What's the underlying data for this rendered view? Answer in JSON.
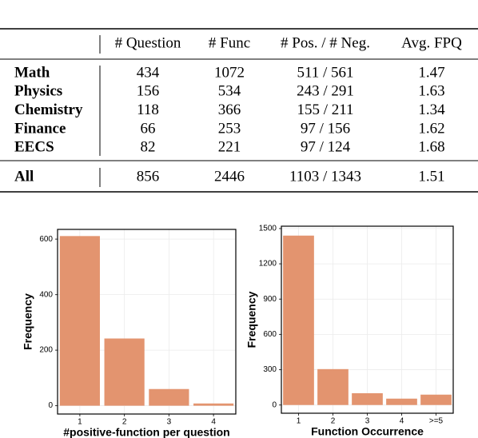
{
  "table": {
    "header": [
      "# Question",
      "# Func",
      "# Pos. / # Neg.",
      "Avg. FPQ"
    ],
    "rows": [
      [
        "Math",
        "434",
        "1072",
        "511 / 561",
        "1.47"
      ],
      [
        "Physics",
        "156",
        "534",
        "243 / 291",
        "1.63"
      ],
      [
        "Chemistry",
        "118",
        "366",
        "155 / 211",
        "1.34"
      ],
      [
        "Finance",
        "66",
        "253",
        "97 / 156",
        "1.62"
      ],
      [
        "EECS",
        "82",
        "221",
        "97 / 124",
        "1.68"
      ]
    ],
    "total": [
      "All",
      "856",
      "2446",
      "1103 / 1343",
      "1.51"
    ]
  },
  "chart_data": [
    {
      "type": "bar",
      "x_label": "#positive-function per question",
      "y_label": "Frequency",
      "categories": [
        "1",
        "2",
        "3",
        "4"
      ],
      "values": [
        611,
        242,
        60,
        8
      ],
      "color": "#e3946f",
      "ylim": [
        -30,
        635
      ],
      "yticks": [
        0,
        200,
        400,
        600
      ],
      "grid": true
    },
    {
      "type": "bar",
      "x_label": "Function Occurrence",
      "y_label": "Frequency",
      "categories": [
        "1",
        "2",
        "3",
        "4",
        ">=5"
      ],
      "values": [
        1440,
        305,
        100,
        54,
        88
      ],
      "color": "#e3946f",
      "ylim": [
        -70,
        1520
      ],
      "yticks": [
        0,
        300,
        600,
        900,
        1200,
        1500
      ],
      "grid": true
    }
  ]
}
